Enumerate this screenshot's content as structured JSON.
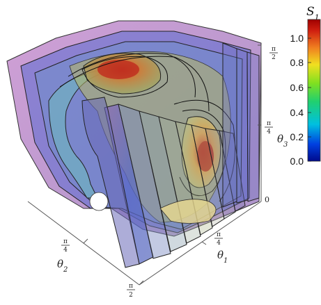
{
  "axes": {
    "theta1": {
      "label_base": "θ",
      "label_sub": "1",
      "ticks": [
        {
          "num": "π",
          "den": "4"
        }
      ]
    },
    "theta2": {
      "label_base": "θ",
      "label_sub": "2",
      "ticks": [
        {
          "num": "π",
          "den": "4"
        },
        {
          "num": "π",
          "den": "2"
        }
      ]
    },
    "theta3": {
      "label_base": "θ",
      "label_sub": "3",
      "ticks": [
        {
          "text": "0"
        },
        {
          "num": "π",
          "den": "4"
        },
        {
          "num": "π",
          "den": "2"
        }
      ]
    },
    "corner_tick": {
      "num": "π",
      "den": "2"
    }
  },
  "colorbar": {
    "title_base": "S",
    "title_sub": "1",
    "ticks": [
      "1.0",
      "0.8",
      "0.6",
      "0.4",
      "0.2",
      "0.0"
    ],
    "range": [
      0,
      1.1
    ],
    "colors": [
      "#000a8c",
      "#0040e0",
      "#00c0e0",
      "#20d070",
      "#80e020",
      "#f0e020",
      "#f08020",
      "#d02010",
      "#a00000"
    ]
  },
  "surface_colors": {
    "outer_edge": "#b070b8",
    "slab_blue": "#5868c8",
    "core_red": "#c03020",
    "core_yellow": "#e8d890",
    "core_teal": "#70b8b0"
  }
}
